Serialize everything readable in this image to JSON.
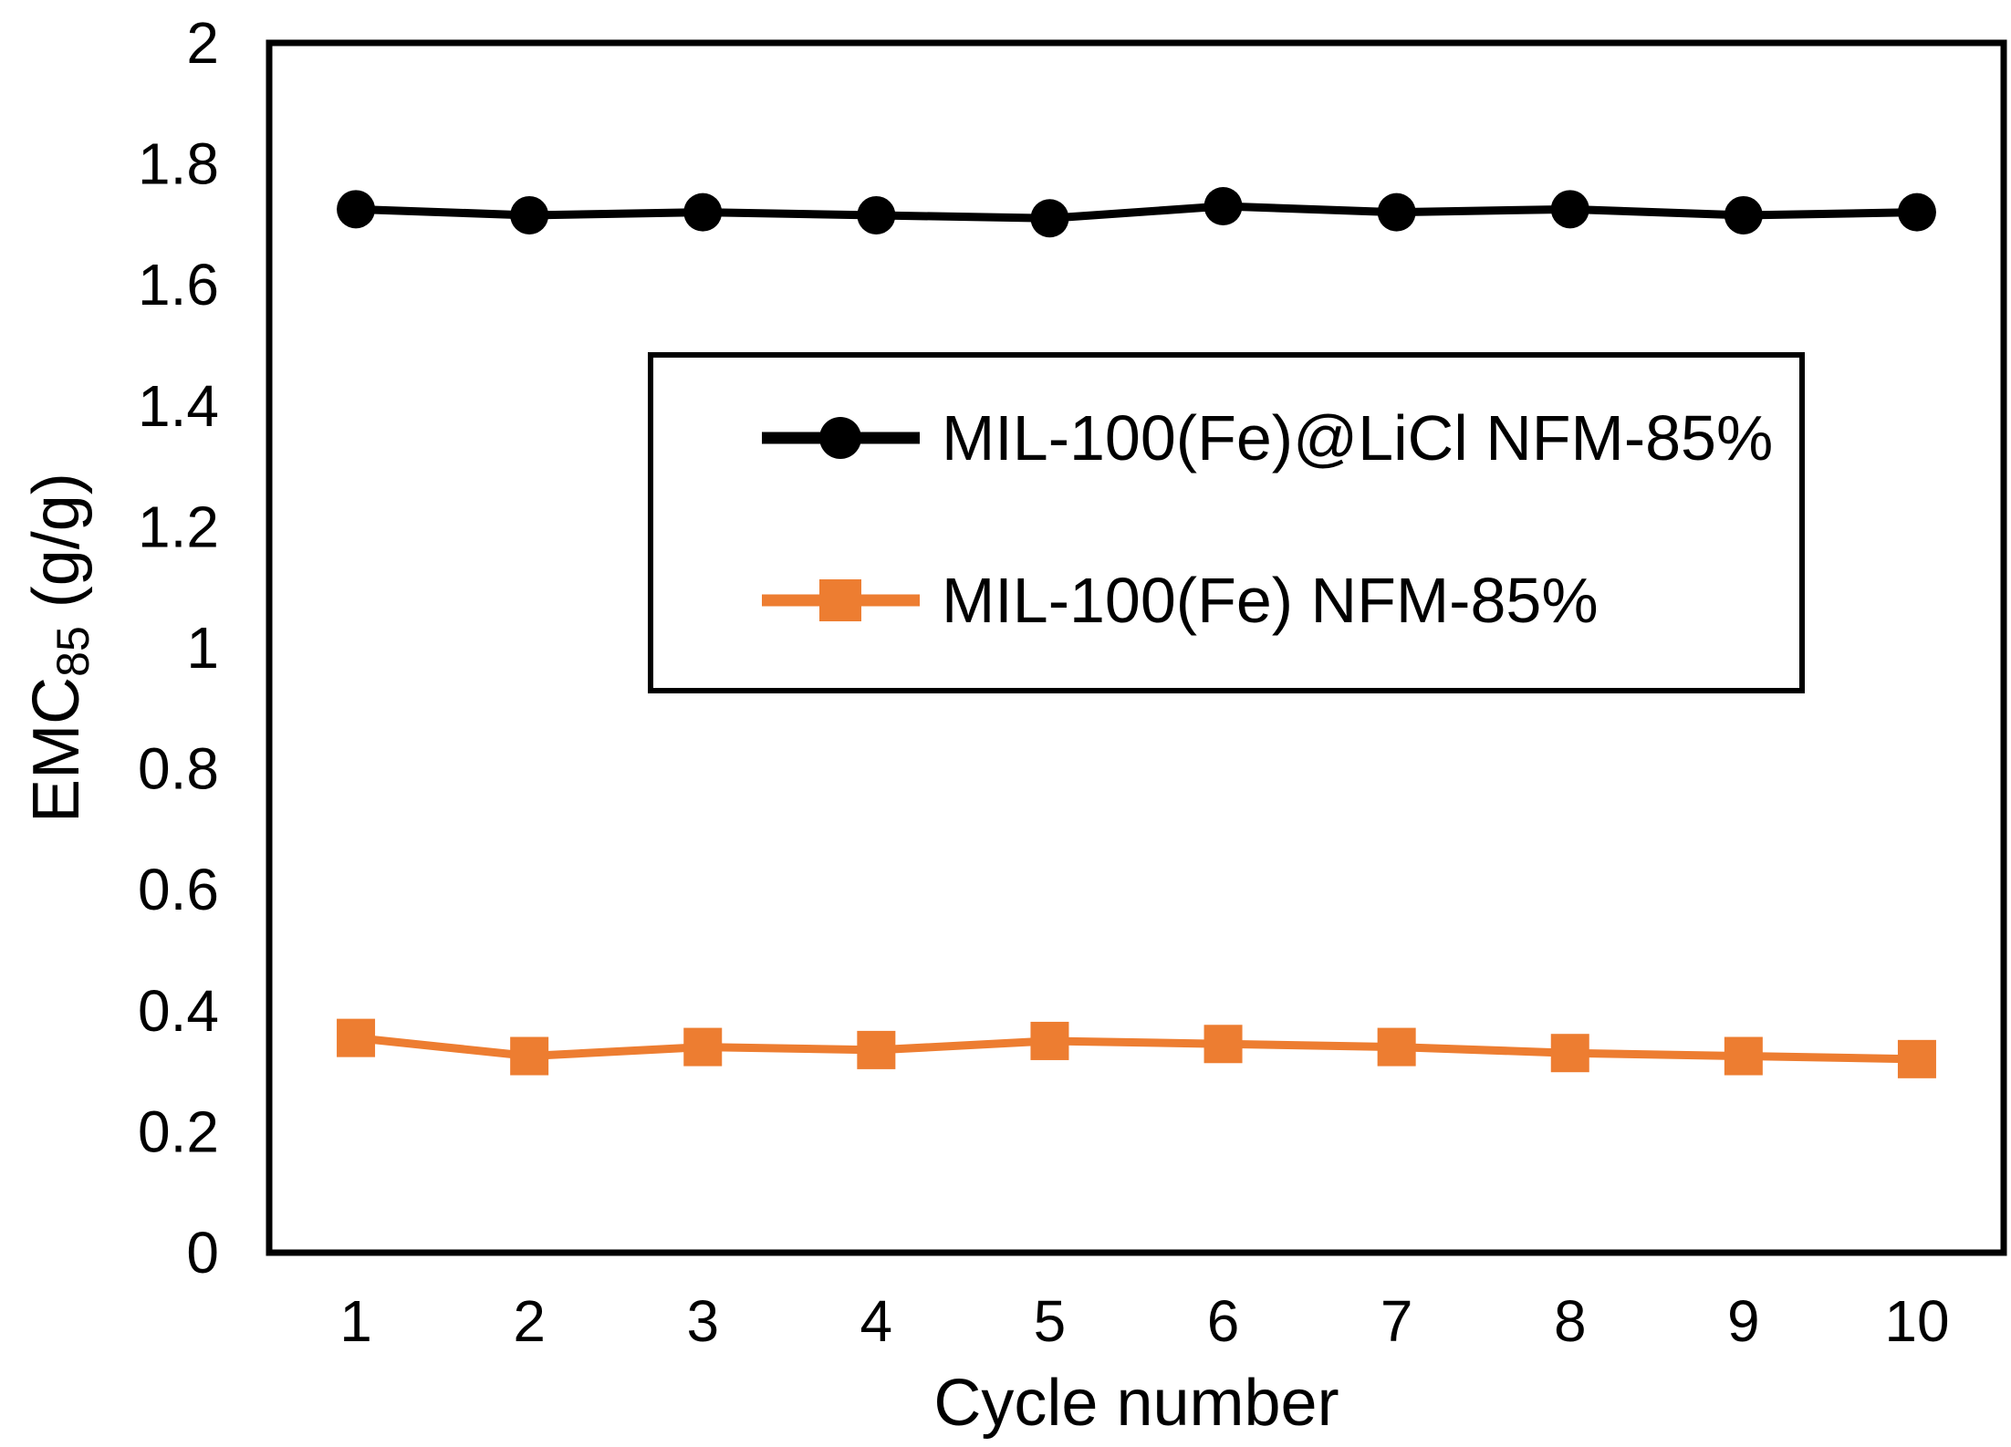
{
  "chart_data": {
    "type": "line",
    "title": "",
    "xlabel": "Cycle number",
    "ylabel": {
      "prefix": "EMC",
      "subscript": "85",
      "suffix": " (g/g)"
    },
    "x_ticks": [
      "1",
      "2",
      "3",
      "4",
      "5",
      "6",
      "7",
      "8",
      "9",
      "10"
    ],
    "y_ticks": [
      {
        "label": "0",
        "value": 0.0
      },
      {
        "label": "0.2",
        "value": 0.2
      },
      {
        "label": "0.4",
        "value": 0.4
      },
      {
        "label": "0.6",
        "value": 0.6
      },
      {
        "label": "0.8",
        "value": 0.8
      },
      {
        "label": "1",
        "value": 1.0
      },
      {
        "label": "1.2",
        "value": 1.2
      },
      {
        "label": "1.4",
        "value": 1.4
      },
      {
        "label": "1.6",
        "value": 1.6
      },
      {
        "label": "1.8",
        "value": 1.8
      },
      {
        "label": "2",
        "value": 2.0
      }
    ],
    "ylim": [
      0,
      2
    ],
    "grid": false,
    "legend_position": "inside-upper-center",
    "series": [
      {
        "name": "MIL-100(Fe)@LiCl NFM-85%",
        "color": "#000000",
        "marker": "circle",
        "values": [
          1.725,
          1.715,
          1.72,
          1.715,
          1.71,
          1.73,
          1.72,
          1.725,
          1.715,
          1.72
        ]
      },
      {
        "name": "MIL-100(Fe) NFM-85%",
        "color": "#ED7D31",
        "marker": "square",
        "values": [
          0.355,
          0.325,
          0.34,
          0.335,
          0.35,
          0.345,
          0.34,
          0.33,
          0.325,
          0.32
        ]
      }
    ]
  },
  "colors": {
    "axis": "#000000",
    "background": "#FFFFFF",
    "text": "#000000"
  }
}
